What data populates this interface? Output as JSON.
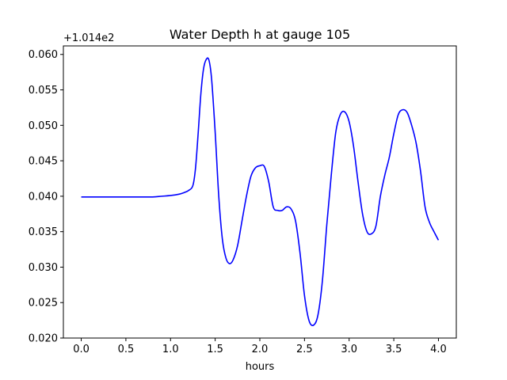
{
  "chart_data": {
    "type": "line",
    "title": "Water Depth h at gauge 105",
    "xlabel": "hours",
    "ylabel": "",
    "y_offset_label": "+1.014e2",
    "xlim": [
      -0.2,
      4.2
    ],
    "ylim": [
      0.02,
      0.0612
    ],
    "xticks": [
      0.0,
      0.5,
      1.0,
      1.5,
      2.0,
      2.5,
      3.0,
      3.5,
      4.0
    ],
    "xtick_labels": [
      "0.0",
      "0.5",
      "1.0",
      "1.5",
      "2.0",
      "2.5",
      "3.0",
      "3.5",
      "4.0"
    ],
    "yticks": [
      0.02,
      0.025,
      0.03,
      0.035,
      0.04,
      0.045,
      0.05,
      0.055,
      0.06
    ],
    "ytick_labels": [
      "0.020",
      "0.025",
      "0.030",
      "0.035",
      "0.040",
      "0.045",
      "0.050",
      "0.055",
      "0.060"
    ],
    "grid": false,
    "series": [
      {
        "color": "#0000ff",
        "x": [
          0.0,
          0.2,
          0.4,
          0.6,
          0.8,
          0.9,
          1.0,
          1.1,
          1.15,
          1.2,
          1.25,
          1.28,
          1.31,
          1.34,
          1.37,
          1.4,
          1.43,
          1.46,
          1.5,
          1.54,
          1.58,
          1.62,
          1.66,
          1.7,
          1.75,
          1.8,
          1.85,
          1.9,
          1.95,
          2.0,
          2.05,
          2.1,
          2.15,
          2.2,
          2.25,
          2.3,
          2.35,
          2.4,
          2.45,
          2.5,
          2.55,
          2.6,
          2.65,
          2.7,
          2.75,
          2.8,
          2.85,
          2.9,
          2.95,
          3.0,
          3.05,
          3.1,
          3.15,
          3.2,
          3.25,
          3.3,
          3.35,
          3.4,
          3.45,
          3.5,
          3.55,
          3.6,
          3.65,
          3.7,
          3.75,
          3.8,
          3.85,
          3.9,
          3.95,
          4.0
        ],
        "y": [
          0.0399,
          0.0399,
          0.0399,
          0.0399,
          0.0399,
          0.04,
          0.0401,
          0.0403,
          0.0405,
          0.0408,
          0.0415,
          0.044,
          0.049,
          0.0545,
          0.058,
          0.0593,
          0.0592,
          0.0565,
          0.049,
          0.04,
          0.034,
          0.0313,
          0.0305,
          0.031,
          0.033,
          0.0365,
          0.04,
          0.0428,
          0.044,
          0.0443,
          0.0442,
          0.042,
          0.0385,
          0.038,
          0.038,
          0.0385,
          0.0382,
          0.0365,
          0.032,
          0.026,
          0.0225,
          0.0218,
          0.0232,
          0.028,
          0.036,
          0.043,
          0.049,
          0.0515,
          0.0519,
          0.0505,
          0.047,
          0.042,
          0.0375,
          0.035,
          0.0347,
          0.0358,
          0.04,
          0.043,
          0.0455,
          0.0488,
          0.0515,
          0.0522,
          0.0518,
          0.05,
          0.0475,
          0.0435,
          0.0385,
          0.0363,
          0.035,
          0.0338
        ]
      }
    ]
  }
}
